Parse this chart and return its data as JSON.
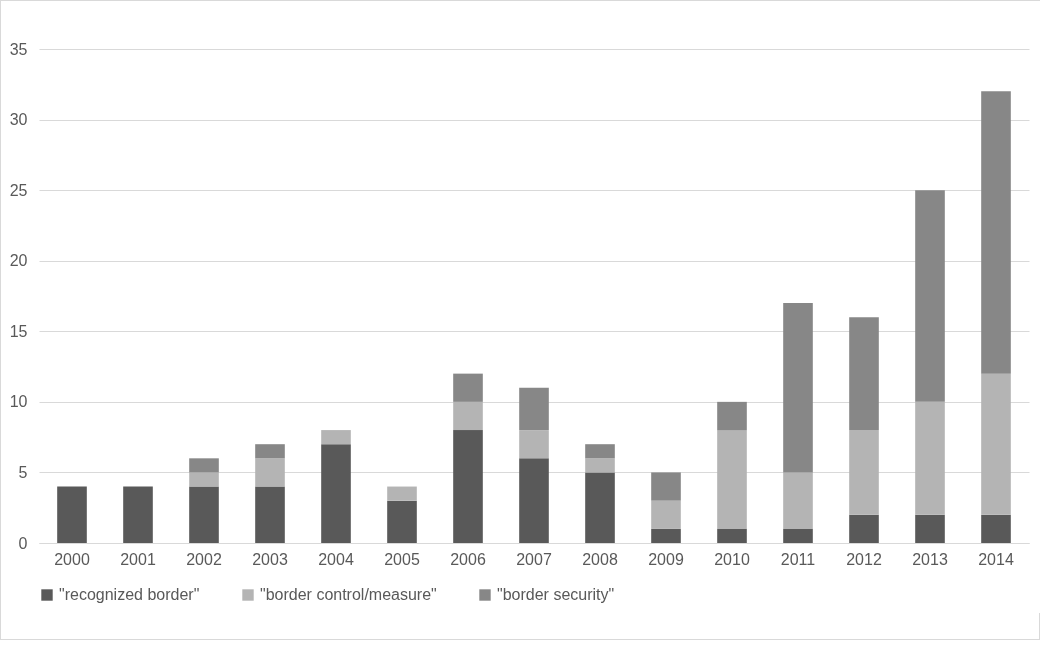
{
  "chart_data": {
    "type": "bar",
    "stacked": true,
    "categories": [
      "2000",
      "2001",
      "2002",
      "2003",
      "2004",
      "2005",
      "2006",
      "2007",
      "2008",
      "2009",
      "2010",
      "2011",
      "2012",
      "2013",
      "2014"
    ],
    "series": [
      {
        "name": "\"recognized border\"",
        "color": "#595959",
        "values": [
          4,
          4,
          4,
          4,
          7,
          3,
          8,
          6,
          5,
          1,
          1,
          1,
          2,
          2,
          2
        ]
      },
      {
        "name": "\"border control/measure\"",
        "color": "#b4b4b4",
        "values": [
          0,
          0,
          1,
          2,
          1,
          1,
          2,
          2,
          1,
          2,
          7,
          4,
          6,
          8,
          10
        ]
      },
      {
        "name": "\"border security\"",
        "color": "#878787",
        "values": [
          0,
          0,
          1,
          1,
          0,
          0,
          2,
          3,
          1,
          2,
          2,
          12,
          8,
          15,
          20
        ]
      }
    ],
    "ylim": [
      0,
      35
    ],
    "yticks": [
      0,
      5,
      10,
      15,
      20,
      25,
      30,
      35
    ],
    "grid": "y",
    "legend": "bottom"
  }
}
